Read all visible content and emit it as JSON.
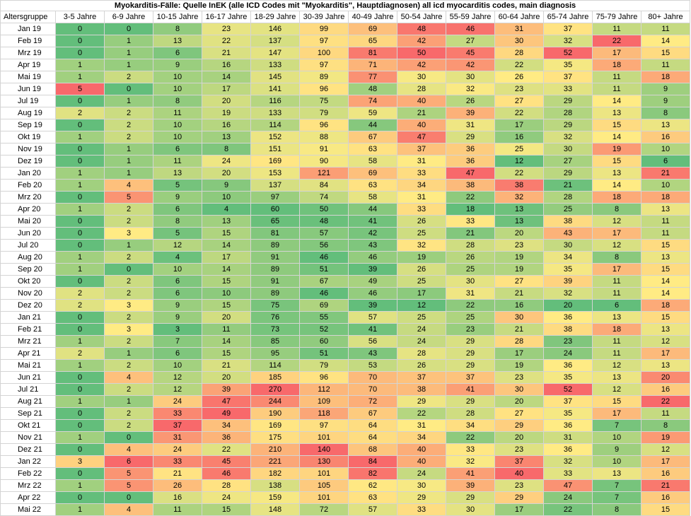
{
  "chart_data": {
    "type": "heatmap",
    "title": "Myokarditis-Fälle: Quelle InEK (alle ICD Codes mit \"Myokarditis\", Hauptdiagnosen) all icd myocarditis codes, main diagnosis",
    "row_header_label": "Altersgruppe",
    "columns": [
      "3-5 Jahre",
      "6-9 Jahre",
      "10-15 Jahre",
      "16-17 Jahre",
      "18-29 Jahre",
      "30-39 Jahre",
      "40-49 Jahre",
      "50-54 Jahre",
      "55-59 Jahre",
      "60-64 Jahre",
      "65-74 Jahre",
      "75-79 Jahre",
      "80+ Jahre"
    ],
    "rows": [
      "Jan 19",
      "Feb 19",
      "Mrz 19",
      "Apr 19",
      "Mai 19",
      "Jun 19",
      "Jul 19",
      "Aug 19",
      "Sep 19",
      "Okt 19",
      "Nov 19",
      "Dez 19",
      "Jan 20",
      "Feb 20",
      "Mrz 20",
      "Apr 20",
      "Mai 20",
      "Jun 20",
      "Jul 20",
      "Aug 20",
      "Sep 20",
      "Okt 20",
      "Nov 20",
      "Dez 20",
      "Jan 21",
      "Feb 21",
      "Mrz 21",
      "Apr 21",
      "Mai 21",
      "Jun 21",
      "Jul 21",
      "Aug 21",
      "Sep 21",
      "Okt 21",
      "Nov 21",
      "Dez 21",
      "Jan 22",
      "Feb 22",
      "Mrz 22",
      "Apr 22",
      "Mai 22"
    ],
    "values": [
      [
        0,
        0,
        8,
        23,
        146,
        99,
        69,
        48,
        46,
        31,
        37,
        11,
        11
      ],
      [
        0,
        1,
        13,
        22,
        137,
        97,
        65,
        42,
        27,
        30,
        32,
        22,
        14
      ],
      [
        0,
        1,
        6,
        21,
        147,
        100,
        81,
        50,
        45,
        28,
        52,
        17,
        15
      ],
      [
        1,
        1,
        9,
        16,
        133,
        97,
        71,
        42,
        42,
        22,
        35,
        18,
        11
      ],
      [
        1,
        2,
        10,
        14,
        145,
        89,
        77,
        30,
        30,
        26,
        37,
        11,
        18
      ],
      [
        5,
        0,
        10,
        17,
        141,
        96,
        48,
        28,
        32,
        23,
        33,
        11,
        9
      ],
      [
        0,
        1,
        8,
        20,
        116,
        75,
        74,
        40,
        26,
        27,
        29,
        14,
        9
      ],
      [
        2,
        2,
        11,
        19,
        133,
        79,
        59,
        21,
        39,
        22,
        28,
        13,
        8
      ],
      [
        0,
        2,
        10,
        16,
        114,
        96,
        44,
        40,
        31,
        17,
        29,
        15,
        13
      ],
      [
        1,
        2,
        10,
        13,
        152,
        88,
        67,
        47,
        29,
        16,
        32,
        14,
        16
      ],
      [
        0,
        1,
        6,
        8,
        151,
        91,
        63,
        37,
        36,
        25,
        30,
        19,
        10
      ],
      [
        0,
        1,
        11,
        24,
        169,
        90,
        58,
        31,
        36,
        12,
        27,
        15,
        6
      ],
      [
        1,
        1,
        13,
        20,
        153,
        121,
        69,
        33,
        47,
        22,
        29,
        13,
        21
      ],
      [
        1,
        4,
        5,
        9,
        137,
        84,
        63,
        34,
        38,
        38,
        21,
        14,
        10
      ],
      [
        0,
        5,
        9,
        10,
        97,
        74,
        58,
        31,
        22,
        32,
        28,
        18,
        18
      ],
      [
        1,
        2,
        6,
        4,
        60,
        50,
        44,
        33,
        18,
        13,
        25,
        8,
        13
      ],
      [
        0,
        2,
        8,
        13,
        65,
        48,
        41,
        26,
        33,
        13,
        38,
        12,
        11
      ],
      [
        0,
        3,
        5,
        15,
        81,
        57,
        42,
        25,
        21,
        20,
        43,
        17,
        11
      ],
      [
        0,
        1,
        12,
        14,
        89,
        56,
        43,
        32,
        28,
        23,
        30,
        12,
        15
      ],
      [
        1,
        2,
        4,
        17,
        91,
        46,
        46,
        19,
        26,
        19,
        34,
        8,
        13
      ],
      [
        1,
        0,
        10,
        14,
        89,
        51,
        39,
        26,
        25,
        19,
        35,
        17,
        15
      ],
      [
        0,
        2,
        6,
        15,
        91,
        67,
        49,
        25,
        30,
        27,
        39,
        11,
        14
      ],
      [
        2,
        2,
        6,
        10,
        89,
        46,
        46,
        17,
        31,
        21,
        32,
        11,
        14
      ],
      [
        2,
        3,
        9,
        15,
        75,
        69,
        39,
        12,
        22,
        16,
        20,
        6,
        18
      ],
      [
        0,
        2,
        9,
        20,
        76,
        55,
        57,
        25,
        25,
        30,
        36,
        13,
        15
      ],
      [
        0,
        3,
        3,
        11,
        73,
        52,
        41,
        24,
        23,
        21,
        38,
        18,
        13
      ],
      [
        1,
        2,
        7,
        14,
        85,
        60,
        56,
        24,
        29,
        28,
        23,
        11,
        12
      ],
      [
        2,
        1,
        6,
        15,
        95,
        51,
        43,
        28,
        29,
        17,
        24,
        11,
        17
      ],
      [
        1,
        2,
        10,
        21,
        114,
        79,
        53,
        26,
        29,
        19,
        36,
        12,
        13
      ],
      [
        0,
        4,
        12,
        20,
        185,
        96,
        70,
        37,
        37,
        23,
        35,
        13,
        20
      ],
      [
        0,
        2,
        12,
        39,
        270,
        112,
        70,
        38,
        41,
        30,
        52,
        12,
        16
      ],
      [
        1,
        1,
        24,
        47,
        244,
        109,
        72,
        29,
        29,
        20,
        37,
        15,
        22
      ],
      [
        0,
        2,
        33,
        49,
        190,
        118,
        67,
        22,
        28,
        27,
        35,
        17,
        11
      ],
      [
        0,
        2,
        37,
        34,
        169,
        97,
        64,
        31,
        34,
        29,
        36,
        7,
        8
      ],
      [
        1,
        0,
        31,
        36,
        175,
        101,
        64,
        34,
        22,
        20,
        31,
        10,
        19
      ],
      [
        0,
        4,
        24,
        22,
        210,
        140,
        68,
        40,
        33,
        23,
        36,
        9,
        12
      ],
      [
        3,
        6,
        33,
        45,
        221,
        130,
        84,
        40,
        32,
        37,
        32,
        10,
        17
      ],
      [
        0,
        5,
        21,
        46,
        182,
        101,
        82,
        24,
        41,
        40,
        33,
        13,
        16
      ],
      [
        1,
        5,
        26,
        28,
        138,
        105,
        62,
        30,
        39,
        23,
        47,
        7,
        21
      ],
      [
        0,
        0,
        16,
        24,
        159,
        101,
        63,
        29,
        29,
        29,
        24,
        7,
        16
      ],
      [
        1,
        4,
        11,
        15,
        148,
        72,
        57,
        33,
        30,
        17,
        22,
        8,
        15
      ]
    ],
    "color_scale": {
      "low": "#63be7b",
      "mid": "#ffeb84",
      "high": "#f8696b",
      "scope": "per column"
    },
    "grid": true
  }
}
